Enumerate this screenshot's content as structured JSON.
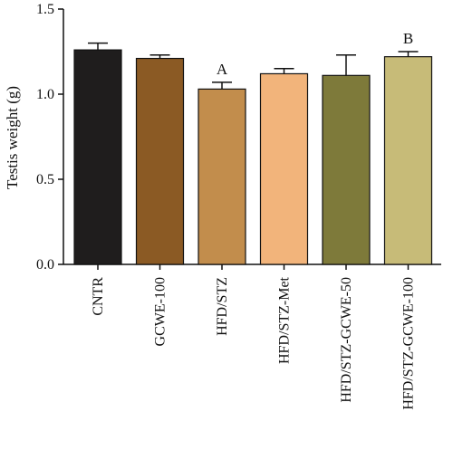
{
  "chart_data": {
    "type": "bar",
    "ylabel": "Testis weight (g)",
    "xlabel": "",
    "ylim": [
      0,
      1.5
    ],
    "yticks": [
      "0.0",
      "0.5",
      "1.0",
      "1.5"
    ],
    "categories": [
      "CNTR",
      "GCWE-100",
      "HFD/STZ",
      "HFD/STZ-Met",
      "HFD/STZ-GCWE-50",
      "HFD/STZ-GCWE-100"
    ],
    "values": [
      1.26,
      1.21,
      1.03,
      1.12,
      1.11,
      1.22
    ],
    "errors": [
      0.04,
      0.02,
      0.04,
      0.03,
      0.12,
      0.03
    ],
    "colors": [
      "#1f1d1d",
      "#8b5a24",
      "#c28d4c",
      "#f2b47b",
      "#7e7a3a",
      "#c7bb78"
    ],
    "annotations": [
      "",
      "",
      "A",
      "",
      "",
      "B"
    ],
    "grid": false,
    "legend": "none"
  }
}
